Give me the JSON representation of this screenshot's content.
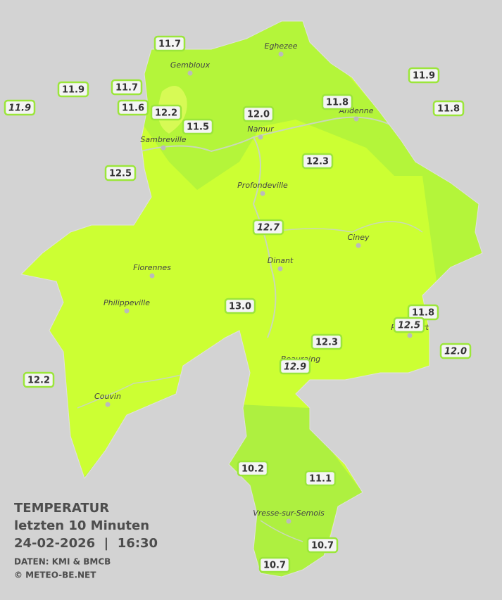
{
  "legend": {
    "title": "TEMPERATUR",
    "period": "letzten 10 Minuten",
    "datetime": "24-02-2026  |  16:30",
    "source": "DATEN: KMI & BMCB",
    "copyright": "© METEO-BE.NET"
  },
  "places": [
    "Eghezee",
    "Gembloux",
    "Andenne",
    "Namur",
    "Sambreville",
    "Profondeville",
    "Ciney",
    "Dinant",
    "Florennes",
    "Philippeville",
    "Beauraing",
    "Rochefort",
    "Couvin",
    "Vresse-sur-Semois"
  ],
  "stations": [
    {
      "reading": "11.7",
      "italic": false
    },
    {
      "reading": "11.9",
      "italic": false
    },
    {
      "reading": "11.7",
      "italic": false
    },
    {
      "reading": "11.9",
      "italic": true
    },
    {
      "reading": "11.6",
      "italic": false
    },
    {
      "reading": "12.2",
      "italic": false
    },
    {
      "reading": "11.5",
      "italic": false
    },
    {
      "reading": "12.0",
      "italic": false
    },
    {
      "reading": "11.8",
      "italic": false
    },
    {
      "reading": "11.9",
      "italic": false
    },
    {
      "reading": "11.8",
      "italic": false
    },
    {
      "reading": "12.5",
      "italic": false
    },
    {
      "reading": "12.3",
      "italic": false
    },
    {
      "reading": "12.7",
      "italic": true
    },
    {
      "reading": "13.0",
      "italic": false
    },
    {
      "reading": "11.8",
      "italic": false
    },
    {
      "reading": "12.5",
      "italic": true
    },
    {
      "reading": "12.0",
      "italic": true
    },
    {
      "reading": "12.3",
      "italic": false
    },
    {
      "reading": "12.9",
      "italic": true
    },
    {
      "reading": "12.2",
      "italic": false
    },
    {
      "reading": "10.2",
      "italic": false
    },
    {
      "reading": "11.1",
      "italic": false
    },
    {
      "reading": "10.7",
      "italic": false
    },
    {
      "reading": "10.7",
      "italic": false
    }
  ]
}
